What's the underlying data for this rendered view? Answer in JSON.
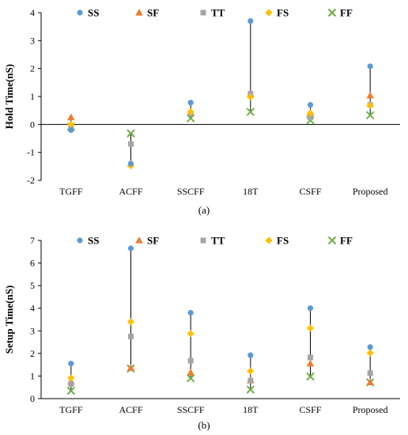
{
  "series_styles": {
    "SS": {
      "color": "#5B9BD5",
      "marker": "circle"
    },
    "SF": {
      "color": "#ED7D31",
      "marker": "triangle"
    },
    "TT": {
      "color": "#A5A5A5",
      "marker": "square"
    },
    "FS": {
      "color": "#FFC000",
      "marker": "diamond"
    },
    "FF": {
      "color": "#70AD47",
      "marker": "x-cross"
    }
  },
  "chart_data": [
    {
      "type": "scatter",
      "panel_label": "(a)",
      "title": "",
      "xlabel": "",
      "ylabel": "Hold Time(nS)",
      "ylim": [
        -2,
        4
      ],
      "yticks": [
        -2,
        -1,
        0,
        1,
        2,
        3,
        4
      ],
      "grid": false,
      "legend": "top",
      "categories": [
        "TGFF",
        "ACFF",
        "SSCFF",
        "18T",
        "CSFF",
        "Proposed"
      ],
      "series": [
        {
          "name": "SS",
          "values": [
            -0.2,
            -1.4,
            0.78,
            3.7,
            0.7,
            2.08
          ]
        },
        {
          "name": "SF",
          "values": [
            0.25,
            -1.4,
            0.42,
            1.08,
            0.42,
            1.03
          ]
        },
        {
          "name": "TT",
          "values": [
            -0.05,
            -0.7,
            0.38,
            1.1,
            0.25,
            0.7
          ]
        },
        {
          "name": "FS",
          "values": [
            0.0,
            -1.48,
            0.45,
            0.98,
            0.4,
            0.68
          ]
        },
        {
          "name": "FF",
          "values": [
            -0.08,
            -0.32,
            0.22,
            0.45,
            0.15,
            0.33
          ]
        }
      ]
    },
    {
      "type": "scatter",
      "panel_label": "(b)",
      "title": "",
      "xlabel": "",
      "ylabel": "Setup Time(nS)",
      "ylim": [
        0,
        7
      ],
      "yticks": [
        0,
        1,
        2,
        3,
        4,
        5,
        6,
        7
      ],
      "grid": false,
      "legend": "top",
      "categories": [
        "TGFF",
        "ACFF",
        "SSCFF",
        "18T",
        "CSFF",
        "Proposed"
      ],
      "series": [
        {
          "name": "SS",
          "values": [
            1.55,
            6.65,
            3.8,
            1.92,
            4.0,
            2.28
          ]
        },
        {
          "name": "SF",
          "values": [
            0.75,
            1.35,
            1.15,
            0.8,
            1.55,
            0.72
          ]
        },
        {
          "name": "TT",
          "values": [
            0.65,
            2.75,
            1.68,
            0.8,
            1.82,
            1.13
          ]
        },
        {
          "name": "FS",
          "values": [
            0.92,
            3.4,
            2.88,
            1.22,
            3.12,
            2.02
          ]
        },
        {
          "name": "FF",
          "values": [
            0.35,
            1.33,
            0.9,
            0.4,
            0.98,
            0.72
          ]
        }
      ]
    }
  ]
}
